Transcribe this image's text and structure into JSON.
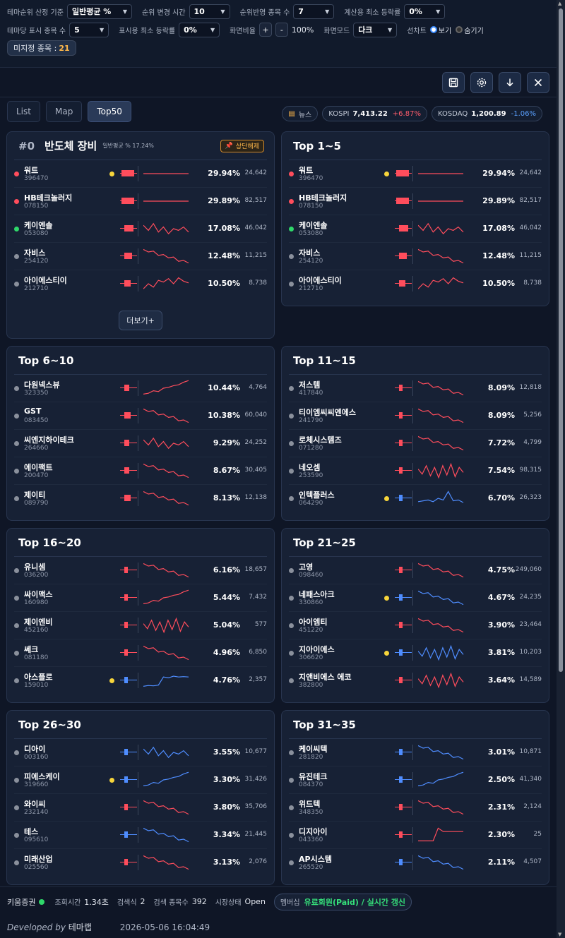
{
  "filters": {
    "theme_rank_basis_label": "테마순위 산정 기준",
    "theme_rank_basis_value": "일반평균 %",
    "rank_change_time_label": "순위 변경 시간",
    "rank_change_time_value": "10",
    "rank_reflect_count_label": "순위반영 종목 수",
    "rank_reflect_count_value": "7",
    "calc_min_rate_label": "계산용 최소 등락률",
    "calc_min_rate_value": "0%",
    "per_theme_count_label": "테마당 표시 종목 수",
    "per_theme_count_value": "5",
    "display_min_rate_label": "표시용 최소 등락률",
    "display_min_rate_value": "0%",
    "screen_ratio_label": "화면비율",
    "zoom_plus": "+",
    "zoom_minus": "-",
    "screen_ratio_value": "100%",
    "screen_mode_label": "화면모드",
    "screen_mode_value": "다크",
    "line_chart_label": "선차트",
    "line_chart_show": "보기",
    "line_chart_hide": "숨기기",
    "unassigned_label": "미지정 종목 :",
    "unassigned_count": "21"
  },
  "tools": [
    "save-icon",
    "settings-icon",
    "download-icon",
    "close-icon"
  ],
  "tabs": [
    {
      "label": "List",
      "active": false
    },
    {
      "label": "Map",
      "active": false
    },
    {
      "label": "Top50",
      "active": true
    }
  ],
  "market": {
    "news_label": "뉴스",
    "kospi_label": "KOSPI",
    "kospi_value": "7,413.22",
    "kospi_change": "+6.87%",
    "kosdaq_label": "KOSDAQ",
    "kosdaq_value": "1,200.89",
    "kosdaq_change": "-1.06%"
  },
  "theme_card": {
    "rank": "#0",
    "title": "반도체 장비",
    "subtitle": "일반평균 % 17.24%",
    "badge": "상단해제",
    "more_label": "더보기+"
  },
  "groups": [
    {
      "title": "Top 1~5",
      "items": [
        {
          "name": "워트",
          "code": "396470",
          "pct": "29.94%",
          "vol": "24,642",
          "dot": "#ff4d5c",
          "star": true,
          "tone": "red",
          "bar": 1.0,
          "trend": "flat"
        },
        {
          "name": "HB테크놀러지",
          "code": "078150",
          "pct": "29.89%",
          "vol": "82,517",
          "dot": "#ff4d5c",
          "star": false,
          "tone": "red",
          "bar": 1.0,
          "trend": "flat"
        },
        {
          "name": "케이엔솔",
          "code": "053080",
          "pct": "17.08%",
          "vol": "46,042",
          "dot": "#2fd86a",
          "star": false,
          "tone": "red",
          "bar": 0.7,
          "trend": "zigzag"
        },
        {
          "name": "자비스",
          "code": "254120",
          "pct": "12.48%",
          "vol": "11,215",
          "dot": "#8a909c",
          "star": false,
          "tone": "red",
          "bar": 0.6,
          "trend": "down"
        },
        {
          "name": "아이에스티이",
          "code": "212710",
          "pct": "10.50%",
          "vol": "8,738",
          "dot": "#8a909c",
          "star": false,
          "tone": "red",
          "bar": 0.5,
          "trend": "upzig"
        }
      ]
    },
    {
      "title": "Top 6~10",
      "items": [
        {
          "name": "다원넥스뷰",
          "code": "323350",
          "pct": "10.44%",
          "vol": "4,764",
          "dot": "#8a909c",
          "star": false,
          "tone": "red",
          "bar": 0.4,
          "trend": "up"
        },
        {
          "name": "GST",
          "code": "083450",
          "pct": "10.38%",
          "vol": "60,040",
          "dot": "#8a909c",
          "star": false,
          "tone": "red",
          "bar": 0.5,
          "trend": "down"
        },
        {
          "name": "씨엔지하이테크",
          "code": "264660",
          "pct": "9.29%",
          "vol": "24,252",
          "dot": "#8a909c",
          "star": false,
          "tone": "red",
          "bar": 0.4,
          "trend": "zigzag"
        },
        {
          "name": "에이팩트",
          "code": "200470",
          "pct": "8.67%",
          "vol": "30,405",
          "dot": "#8a909c",
          "star": false,
          "tone": "red",
          "bar": 0.4,
          "trend": "down"
        },
        {
          "name": "제이티",
          "code": "089790",
          "pct": "8.13%",
          "vol": "12,138",
          "dot": "#8a909c",
          "star": false,
          "tone": "red",
          "bar": 0.5,
          "trend": "down"
        }
      ]
    },
    {
      "title": "Top 11~15",
      "items": [
        {
          "name": "저스템",
          "code": "417840",
          "pct": "8.09%",
          "vol": "12,818",
          "dot": "#8a909c",
          "star": false,
          "tone": "red",
          "bar": 0.3,
          "trend": "down"
        },
        {
          "name": "티이엠씨씨엔에스",
          "code": "241790",
          "pct": "8.09%",
          "vol": "5,256",
          "dot": "#8a909c",
          "star": false,
          "tone": "red",
          "bar": 0.3,
          "trend": "down"
        },
        {
          "name": "로체시스템즈",
          "code": "071280",
          "pct": "7.72%",
          "vol": "4,799",
          "dot": "#8a909c",
          "star": false,
          "tone": "red",
          "bar": 0.3,
          "trend": "down"
        },
        {
          "name": "네오셈",
          "code": "253590",
          "pct": "7.54%",
          "vol": "98,315",
          "dot": "#8a909c",
          "star": false,
          "tone": "red",
          "bar": 0.3,
          "trend": "noisy"
        },
        {
          "name": "인텍플러스",
          "code": "064290",
          "pct": "6.70%",
          "vol": "26,323",
          "dot": "#8a909c",
          "star": true,
          "tone": "blue",
          "bar": 0.3,
          "trend": "spike"
        }
      ]
    },
    {
      "title": "Top 16~20",
      "items": [
        {
          "name": "유니셈",
          "code": "036200",
          "pct": "6.16%",
          "vol": "18,657",
          "dot": "#8a909c",
          "star": false,
          "tone": "red",
          "bar": 0.3,
          "trend": "down"
        },
        {
          "name": "싸이맥스",
          "code": "160980",
          "pct": "5.44%",
          "vol": "7,432",
          "dot": "#8a909c",
          "star": false,
          "tone": "red",
          "bar": 0.3,
          "trend": "up"
        },
        {
          "name": "제이엔비",
          "code": "452160",
          "pct": "5.04%",
          "vol": "577",
          "dot": "#8a909c",
          "star": false,
          "tone": "red",
          "bar": 0.3,
          "trend": "noisy"
        },
        {
          "name": "쎄크",
          "code": "081180",
          "pct": "4.96%",
          "vol": "6,850",
          "dot": "#8a909c",
          "star": false,
          "tone": "red",
          "bar": 0.3,
          "trend": "down"
        },
        {
          "name": "아스플로",
          "code": "159010",
          "pct": "4.76%",
          "vol": "2,357",
          "dot": "#8a909c",
          "star": true,
          "tone": "blue",
          "bar": 0.3,
          "trend": "step"
        }
      ]
    },
    {
      "title": "Top 21~25",
      "items": [
        {
          "name": "고영",
          "code": "098460",
          "pct": "4.75%",
          "vol": "249,060",
          "dot": "#8a909c",
          "star": false,
          "tone": "red",
          "bar": 0.3,
          "trend": "down"
        },
        {
          "name": "네패스아크",
          "code": "330860",
          "pct": "4.67%",
          "vol": "24,235",
          "dot": "#8a909c",
          "star": true,
          "tone": "blue",
          "bar": 0.3,
          "trend": "down"
        },
        {
          "name": "아이엠티",
          "code": "451220",
          "pct": "3.90%",
          "vol": "23,464",
          "dot": "#8a909c",
          "star": false,
          "tone": "red",
          "bar": 0.3,
          "trend": "down"
        },
        {
          "name": "지아이에스",
          "code": "306620",
          "pct": "3.81%",
          "vol": "10,203",
          "dot": "#8a909c",
          "star": true,
          "tone": "blue",
          "bar": 0.3,
          "trend": "noisy"
        },
        {
          "name": "지앤비에스 에코",
          "code": "382800",
          "pct": "3.64%",
          "vol": "14,589",
          "dot": "#8a909c",
          "star": false,
          "tone": "red",
          "bar": 0.3,
          "trend": "noisy"
        }
      ]
    },
    {
      "title": "Top 26~30",
      "items": [
        {
          "name": "디아이",
          "code": "003160",
          "pct": "3.55%",
          "vol": "10,677",
          "dot": "#8a909c",
          "star": false,
          "tone": "blue",
          "bar": 0.3,
          "trend": "zigzag"
        },
        {
          "name": "피에스케이",
          "code": "319660",
          "pct": "3.30%",
          "vol": "31,426",
          "dot": "#8a909c",
          "star": true,
          "tone": "blue",
          "bar": 0.3,
          "trend": "up"
        },
        {
          "name": "와이씨",
          "code": "232140",
          "pct": "3.80%",
          "vol": "35,706",
          "dot": "#8a909c",
          "star": false,
          "tone": "red",
          "bar": 0.3,
          "trend": "down"
        },
        {
          "name": "테스",
          "code": "095610",
          "pct": "3.34%",
          "vol": "21,445",
          "dot": "#8a909c",
          "star": false,
          "tone": "blue",
          "bar": 0.3,
          "trend": "down"
        },
        {
          "name": "미래산업",
          "code": "025560",
          "pct": "3.13%",
          "vol": "2,076",
          "dot": "#8a909c",
          "star": false,
          "tone": "red",
          "bar": 0.3,
          "trend": "down"
        }
      ]
    },
    {
      "title": "Top 31~35",
      "items": [
        {
          "name": "케이씨텍",
          "code": "281820",
          "pct": "3.01%",
          "vol": "10,871",
          "dot": "#8a909c",
          "star": false,
          "tone": "blue",
          "bar": 0.3,
          "trend": "down"
        },
        {
          "name": "유진테크",
          "code": "084370",
          "pct": "2.50%",
          "vol": "41,340",
          "dot": "#8a909c",
          "star": false,
          "tone": "blue",
          "bar": 0.3,
          "trend": "up"
        },
        {
          "name": "위드텍",
          "code": "348350",
          "pct": "2.31%",
          "vol": "2,124",
          "dot": "#8a909c",
          "star": false,
          "tone": "red",
          "bar": 0.3,
          "trend": "down"
        },
        {
          "name": "디지아이",
          "code": "043360",
          "pct": "2.30%",
          "vol": "25",
          "dot": "#8a909c",
          "star": false,
          "tone": "red",
          "bar": 0.3,
          "trend": "jump"
        },
        {
          "name": "AP시스템",
          "code": "265520",
          "pct": "2.11%",
          "vol": "4,507",
          "dot": "#8a909c",
          "star": false,
          "tone": "blue",
          "bar": 0.3,
          "trend": "down"
        }
      ]
    }
  ],
  "footer": {
    "broker": "키움증권",
    "query_time_label": "조회시간",
    "query_time_value": "1.34초",
    "search_count_label": "검색식",
    "search_count_value": "2",
    "search_items_label": "검색 종목수",
    "search_items_value": "392",
    "market_state_label": "시장상태",
    "market_state_value": "Open",
    "membership_label": "멤버십",
    "membership_value": "유료회원(Paid) / 실시간 갱신",
    "developed_by": "Developed by",
    "developer": "테마랩",
    "datetime": "2026-05-06 16:04:49"
  },
  "colors": {
    "up": "#ff4d5c",
    "down": "#4f8dff",
    "accent": "#ffb84a"
  }
}
